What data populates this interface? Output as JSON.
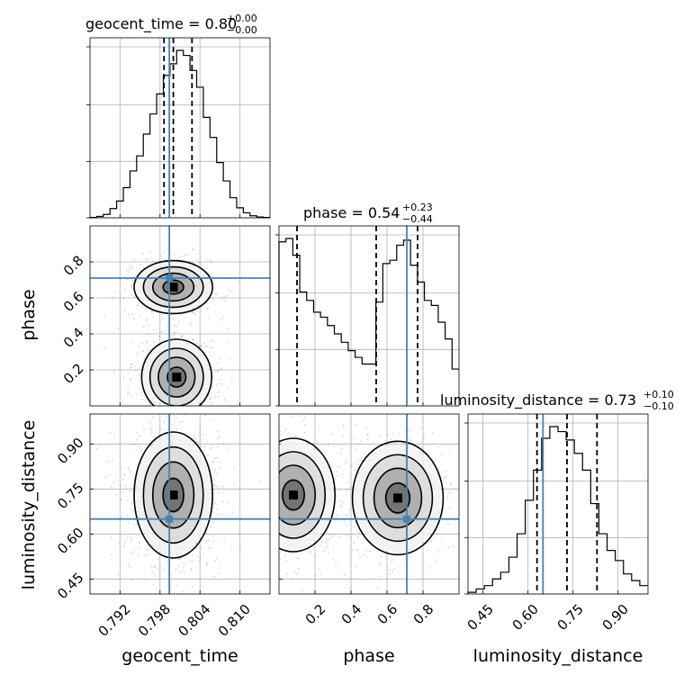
{
  "chart_data": {
    "type": "corner",
    "parameters": [
      {
        "key": "geocent_time",
        "label": "geocent_time",
        "range": [
          0.7875,
          0.8145
        ],
        "ticks": [
          0.792,
          0.798,
          0.804,
          0.81
        ],
        "tick_labels": [
          "0.792",
          "0.798",
          "0.804",
          "0.810"
        ],
        "truth": 0.7994,
        "quantiles": [
          0.7986,
          0.8,
          0.8028
        ]
      },
      {
        "key": "phase",
        "label": "phase",
        "range": [
          0.0,
          1.0
        ],
        "ticks": [
          0.2,
          0.4,
          0.6,
          0.8
        ],
        "tick_labels": [
          "0.2",
          "0.4",
          "0.6",
          "0.8"
        ],
        "truth": 0.71,
        "quantiles": [
          0.1,
          0.54,
          0.77
        ]
      },
      {
        "key": "luminosity_distance",
        "label": "luminosity_distance",
        "range": [
          0.4,
          1.0
        ],
        "ticks": [
          0.45,
          0.6,
          0.75,
          0.9
        ],
        "tick_labels": [
          "0.45",
          "0.60",
          "0.75",
          "0.90"
        ],
        "truth": 0.65,
        "quantiles": [
          0.63,
          0.73,
          0.83
        ]
      }
    ],
    "titles": [
      {
        "param": "geocent_time",
        "text": "geocent_time = 0.80",
        "plus": "+0.00",
        "minus": "−0.00"
      },
      {
        "param": "phase",
        "text": "phase = 0.54",
        "plus": "+0.23",
        "minus": "−0.44"
      },
      {
        "param": "luminosity_distance",
        "text": "luminosity_distance = 0.73",
        "plus": "+0.10",
        "minus": "−0.10"
      }
    ],
    "histograms": {
      "geocent_time": [
        0.002,
        0.008,
        0.02,
        0.055,
        0.1,
        0.18,
        0.28,
        0.37,
        0.5,
        0.62,
        0.74,
        0.85,
        0.92,
        1.0,
        0.97,
        0.88,
        0.78,
        0.6,
        0.48,
        0.33,
        0.22,
        0.12,
        0.06,
        0.03,
        0.012,
        0.005,
        0.002
      ],
      "phase": [
        0.98,
        1.0,
        0.9,
        0.68,
        0.63,
        0.56,
        0.53,
        0.48,
        0.43,
        0.38,
        0.33,
        0.29,
        0.25,
        0.25,
        0.62,
        0.85,
        0.87,
        0.96,
        0.99,
        0.84,
        0.74,
        0.63,
        0.6,
        0.5,
        0.4,
        0.22
      ],
      "luminosity_distance": [
        0.01,
        0.03,
        0.05,
        0.09,
        0.13,
        0.22,
        0.36,
        0.56,
        0.74,
        0.93,
        1.0,
        0.97,
        0.92,
        0.84,
        0.74,
        0.54,
        0.36,
        0.26,
        0.2,
        0.12,
        0.08,
        0.05
      ]
    },
    "grid": true,
    "grid_color": "#b0b0b0",
    "truth_color": "#4682b4",
    "contour_color": "#000000"
  }
}
